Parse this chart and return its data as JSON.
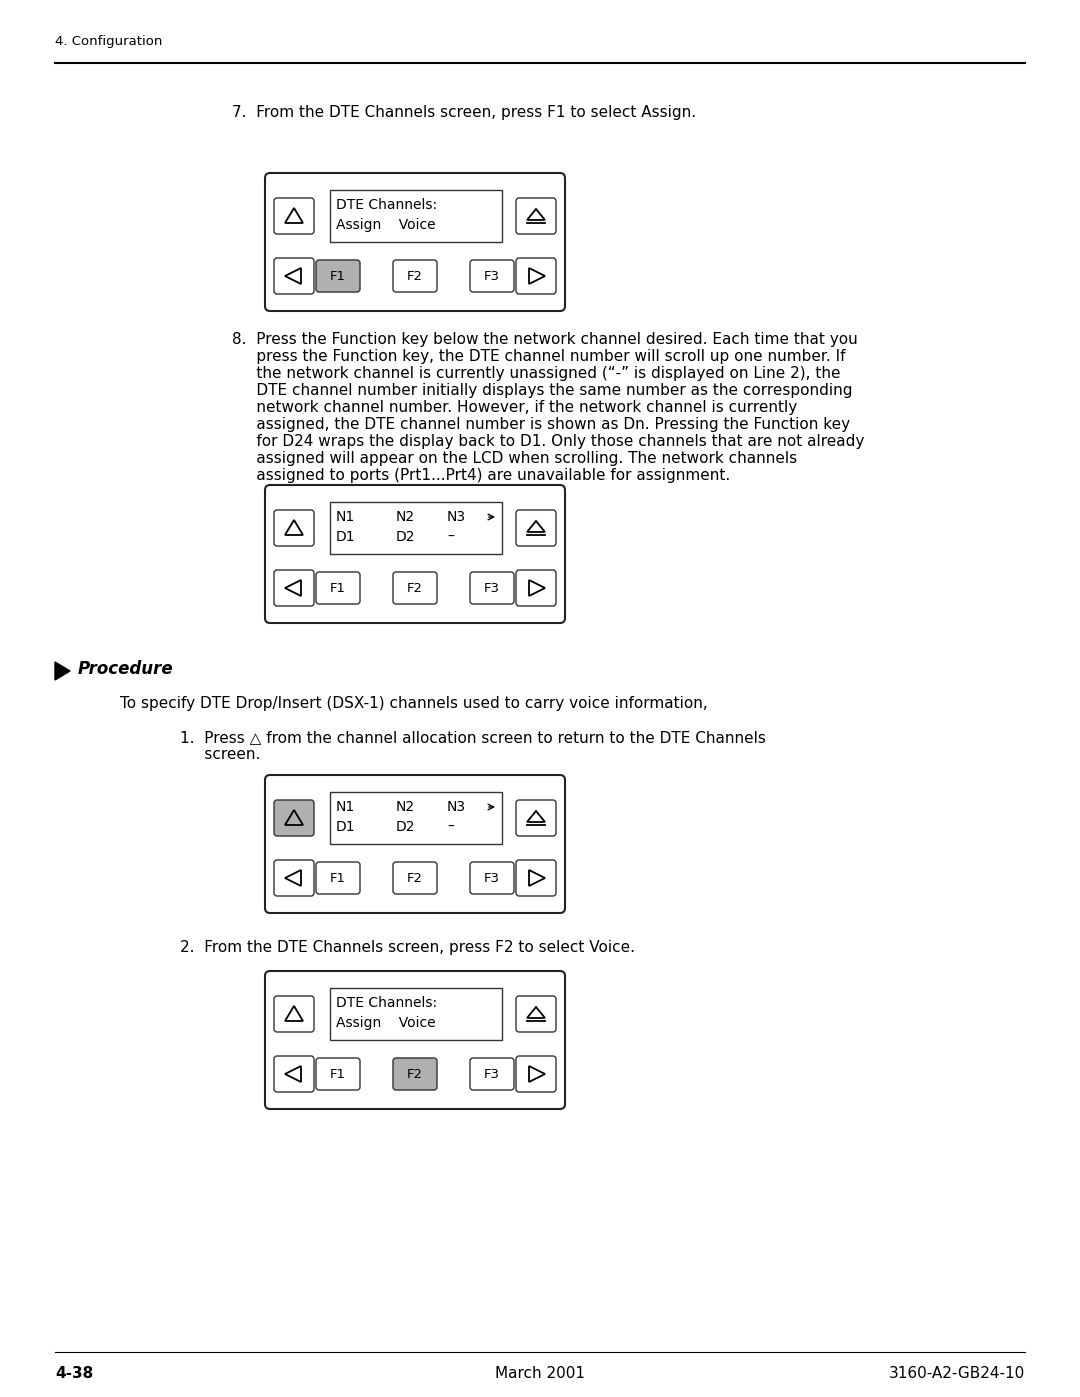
{
  "bg_color": "#ffffff",
  "header_text": "4. Configuration",
  "footer_left": "4-38",
  "footer_center": "March 2001",
  "footer_right": "3160-A2-GB24-10",
  "section7_text": "7.  From the DTE Channels screen, press F1 to select Assign.",
  "section8_lines": [
    "8.  Press the Function key below the network channel desired. Each time that you",
    "     press the Function key, the DTE channel number will scroll up one number. If",
    "     the network channel is currently unassigned (“-” is displayed on Line 2), the",
    "     DTE channel number initially displays the same number as the corresponding",
    "     network channel number. However, if the network channel is currently",
    "     assigned, the DTE channel number is shown as Dn. Pressing the Function key",
    "     for D24 wraps the display back to D1. Only those channels that are not already",
    "     assigned will appear on the LCD when scrolling. The network channels",
    "     assigned to ports (Prt1...Prt4) are unavailable for assignment."
  ],
  "procedure_label": "Procedure",
  "procedure_intro": "To specify DTE Drop/Insert (DSX-1) channels used to carry voice information,",
  "step1_line1": "1.  Press △ from the channel allocation screen to return to the DTE Channels",
  "step1_line2": "     screen.",
  "step2_text": "2.  From the DTE Channels screen, press F2 to select Voice.",
  "ital_n": "n"
}
